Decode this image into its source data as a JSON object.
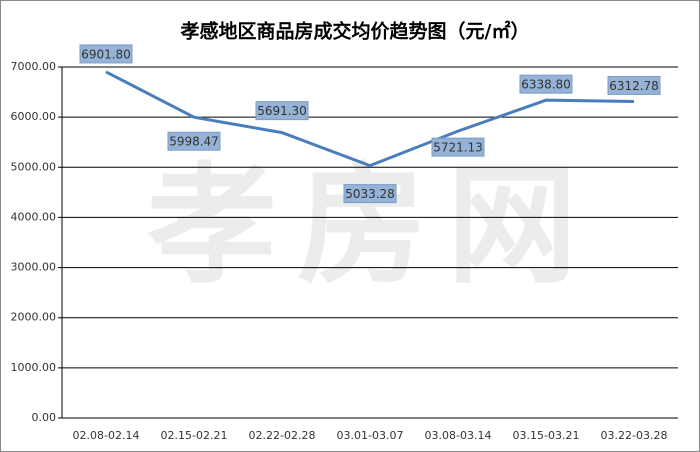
{
  "chart_data": {
    "type": "line",
    "title": "孝感地区商品房成交均价趋势图（元/㎡）",
    "watermark": "孝房网",
    "categories": [
      "02.08-02.14",
      "02.15-02.21",
      "02.22-02.28",
      "03.01-03.07",
      "03.08-03.14",
      "03.15-03.21",
      "03.22-03.28"
    ],
    "series": [
      {
        "color": "#4a7ebb",
        "values": [
          6901.8,
          5998.47,
          5691.3,
          5033.28,
          5721.13,
          6338.8,
          6312.78
        ],
        "value_labels": [
          "6901.80",
          "5998.47",
          "5691.30",
          "5033.28",
          "5721.13",
          "6338.80",
          "6312.78"
        ]
      }
    ],
    "ylim": [
      0,
      7000
    ],
    "yticks": [
      {
        "value": 0,
        "label": "0.00"
      },
      {
        "value": 1000,
        "label": "1000.00"
      },
      {
        "value": 2000,
        "label": "2000.00"
      },
      {
        "value": 3000,
        "label": "3000.00"
      },
      {
        "value": 4000,
        "label": "4000.00"
      },
      {
        "value": 5000,
        "label": "5000.00"
      },
      {
        "value": 6000,
        "label": "6000.00"
      },
      {
        "value": 7000,
        "label": "7000.00"
      }
    ],
    "grid": true
  }
}
